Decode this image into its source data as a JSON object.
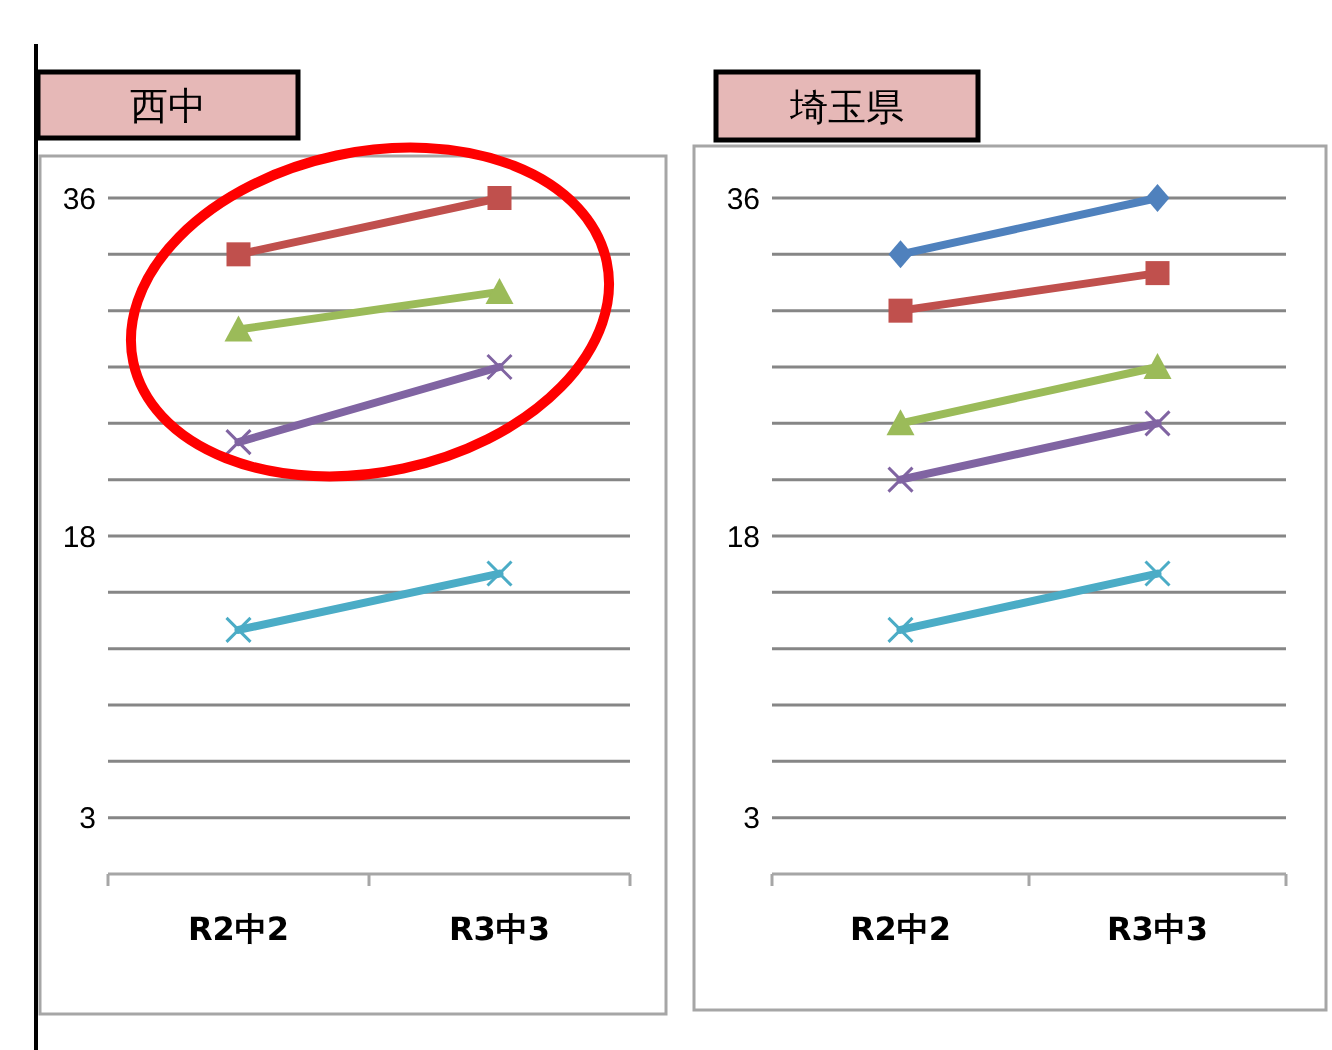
{
  "chart_data": [
    {
      "type": "line",
      "title": "西中",
      "categories": [
        "R2中2",
        "R3中3"
      ],
      "ylim": [
        0,
        36
      ],
      "yticks": [
        {
          "value": 3,
          "label": "3"
        },
        {
          "value": 6,
          "label": null
        },
        {
          "value": 9,
          "label": null
        },
        {
          "value": 12,
          "label": null
        },
        {
          "value": 15,
          "label": null
        },
        {
          "value": 18,
          "label": "18"
        },
        {
          "value": 21,
          "label": null
        },
        {
          "value": 24,
          "label": null
        },
        {
          "value": 27,
          "label": null
        },
        {
          "value": 30,
          "label": null
        },
        {
          "value": 33,
          "label": null
        },
        {
          "value": 36,
          "label": "36"
        }
      ],
      "grid": "y",
      "line_style": "solid",
      "series": [
        {
          "color": "#c0504d",
          "marker": "square",
          "values": [
            33,
            36
          ]
        },
        {
          "color": "#9bbb59",
          "marker": "triangle",
          "values": [
            29,
            31
          ]
        },
        {
          "color": "#8064a2",
          "marker": "cross",
          "values": [
            23,
            27
          ]
        },
        {
          "color": "#4bacc6",
          "marker": "cross",
          "values": [
            13,
            16
          ]
        }
      ]
    },
    {
      "type": "line",
      "title": "埼玉県",
      "categories": [
        "R2中2",
        "R3中3"
      ],
      "ylim": [
        0,
        36
      ],
      "yticks": [
        {
          "value": 3,
          "label": "3"
        },
        {
          "value": 6,
          "label": null
        },
        {
          "value": 9,
          "label": null
        },
        {
          "value": 12,
          "label": null
        },
        {
          "value": 15,
          "label": null
        },
        {
          "value": 18,
          "label": "18"
        },
        {
          "value": 21,
          "label": null
        },
        {
          "value": 24,
          "label": null
        },
        {
          "value": 27,
          "label": null
        },
        {
          "value": 30,
          "label": null
        },
        {
          "value": 33,
          "label": null
        },
        {
          "value": 36,
          "label": "36"
        }
      ],
      "grid": "y",
      "line_style": "solid",
      "series": [
        {
          "color": "#4f81bd",
          "marker": "diamond",
          "values": [
            33,
            36
          ]
        },
        {
          "color": "#c0504d",
          "marker": "square",
          "values": [
            30,
            32
          ]
        },
        {
          "color": "#9bbb59",
          "marker": "triangle",
          "values": [
            24,
            27
          ]
        },
        {
          "color": "#8064a2",
          "marker": "cross",
          "values": [
            21,
            24
          ]
        },
        {
          "color": "#4bacc6",
          "marker": "cross",
          "values": [
            13,
            16
          ]
        }
      ]
    }
  ]
}
